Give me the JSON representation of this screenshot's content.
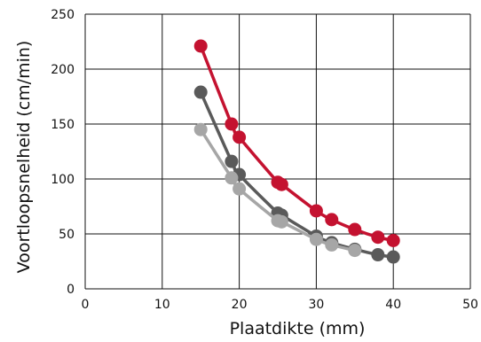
{
  "chart_data": {
    "type": "line",
    "title": "",
    "xlabel": "Plaatdikte (mm)",
    "ylabel": "Voortloopsnelheid (cm/min)",
    "xlim": [
      0,
      50
    ],
    "ylim": [
      0,
      250
    ],
    "x_ticks": [
      0,
      10,
      20,
      30,
      40,
      50
    ],
    "y_ticks": [
      0,
      50,
      100,
      150,
      200,
      250
    ],
    "grid": true,
    "series": [
      {
        "color": "#c41230",
        "x": [
          15,
          19,
          20,
          25,
          25.5,
          30,
          32,
          35,
          38,
          40
        ],
        "y": [
          221,
          150,
          138,
          97,
          95,
          71,
          63,
          54,
          47,
          44
        ]
      },
      {
        "color": "#5a5a5a",
        "x": [
          15,
          19,
          20,
          25,
          25.5,
          30,
          32,
          35,
          38,
          40
        ],
        "y": [
          179,
          116,
          104,
          69,
          67,
          48,
          42,
          36,
          31,
          29
        ]
      },
      {
        "color": "#a6a6a6",
        "x": [
          15,
          19,
          20,
          25,
          25.5,
          30,
          32,
          35
        ],
        "y": [
          145,
          101,
          91,
          62,
          61,
          45,
          40,
          35
        ]
      }
    ]
  }
}
